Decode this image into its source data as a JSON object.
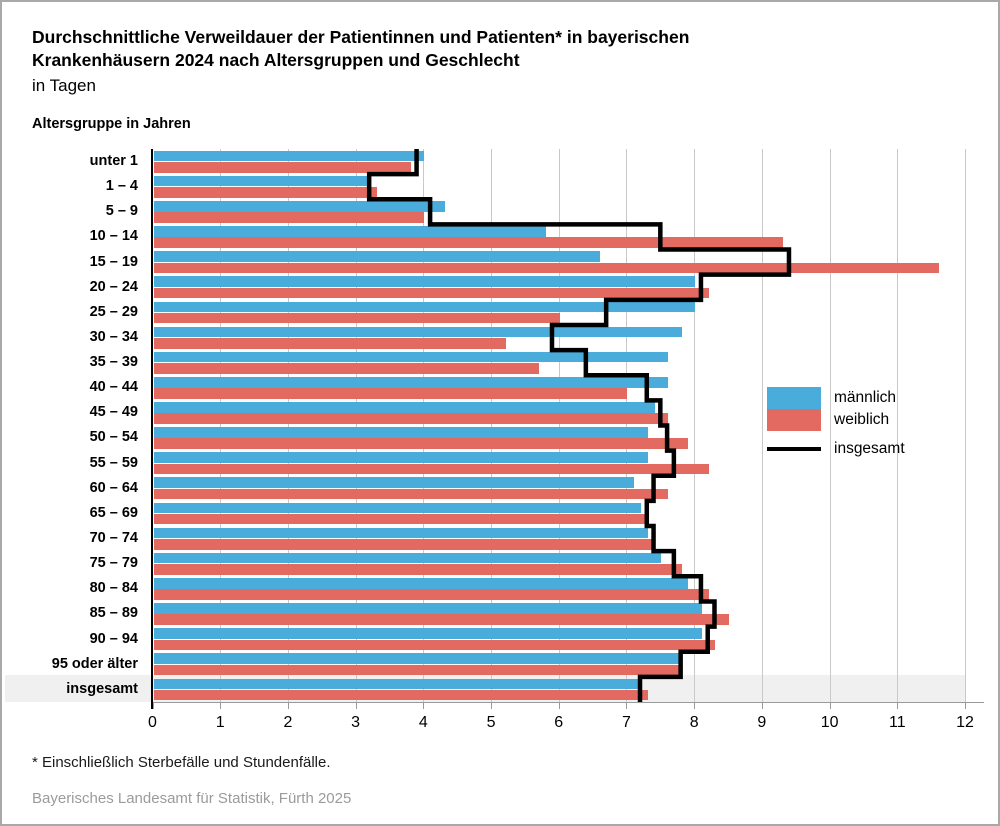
{
  "header": {
    "title_line1": "Durchschnittliche Verweildauer der Patientinnen und Patienten* in bayerischen",
    "title_line2": "Krankenhäusern 2024 nach Altersgruppen und Geschlecht",
    "subtitle": "in Tagen",
    "axis_note": "Altersgruppe in Jahren"
  },
  "chart_data": {
    "type": "bar",
    "orientation": "horizontal",
    "title": "Durchschnittliche Verweildauer der Patientinnen und Patienten in bayerischen Krankenhäusern 2024 nach Altersgruppen und Geschlecht",
    "unit": "Tage",
    "xlabel": "Verweildauer in Tagen",
    "ylabel": "Altersgruppe in Jahren",
    "xlim": [
      0,
      12
    ],
    "xticks": [
      0,
      1,
      2,
      3,
      4,
      5,
      6,
      7,
      8,
      9,
      10,
      11,
      12
    ],
    "grid": true,
    "legend_position": "right-middle",
    "highlighted_category": "insgesamt",
    "categories": [
      "unter 1",
      "1 – 4",
      "5 – 9",
      "10 – 14",
      "15 – 19",
      "20 – 24",
      "25 – 29",
      "30 – 34",
      "35 – 39",
      "40 – 44",
      "45 – 49",
      "50 – 54",
      "55 – 59",
      "60 – 64",
      "65 – 69",
      "70 – 74",
      "75 – 79",
      "80 – 84",
      "85 – 89",
      "90 – 94",
      "95 oder älter",
      "insgesamt"
    ],
    "series": [
      {
        "name": "männlich",
        "style": "bar",
        "color": "#49ACDA",
        "values": [
          4.0,
          3.2,
          4.3,
          5.8,
          6.6,
          8.0,
          8.0,
          7.8,
          7.6,
          7.6,
          7.4,
          7.3,
          7.3,
          7.1,
          7.2,
          7.3,
          7.5,
          7.9,
          8.1,
          8.1,
          7.8,
          7.2
        ]
      },
      {
        "name": "weiblich",
        "style": "bar",
        "color": "#E26A60",
        "values": [
          3.8,
          3.3,
          4.0,
          9.3,
          11.6,
          8.2,
          6.0,
          5.2,
          5.7,
          7.0,
          7.6,
          7.9,
          8.2,
          7.6,
          7.3,
          7.4,
          7.8,
          8.2,
          8.5,
          8.3,
          7.8,
          7.3
        ]
      },
      {
        "name": "insgesamt",
        "style": "step-line",
        "color": "#000000",
        "values": [
          3.9,
          3.2,
          4.1,
          7.5,
          9.4,
          8.1,
          6.7,
          5.9,
          6.4,
          7.3,
          7.5,
          7.6,
          7.7,
          7.4,
          7.3,
          7.4,
          7.7,
          8.1,
          8.3,
          8.2,
          7.8,
          7.2
        ]
      }
    ]
  },
  "footer": {
    "footnote": "* Einschließlich Sterbefälle und Stundenfälle.",
    "source": "Bayerisches Landesamt für Statistik, Fürth 2025"
  },
  "colors": {
    "maennlich": "#49ACDA",
    "weiblich": "#E26A60",
    "insgesamt": "#000000",
    "gridline": "#c9c9c9",
    "total_row_background": "#f0f0f0"
  }
}
